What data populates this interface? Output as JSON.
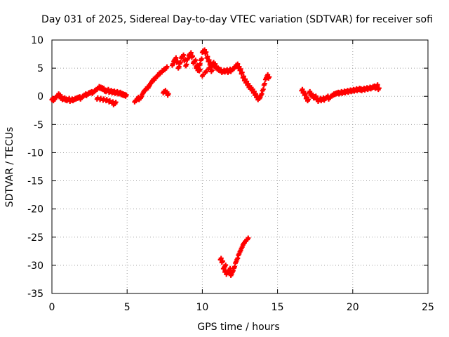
{
  "chart_data": {
    "type": "scatter",
    "title": "Day 031 of 2025, Sidereal Day-to-day VTEC variation (SDTVAR) for receiver sofi",
    "xlabel": "GPS time / hours",
    "ylabel": "SDTVAR / TECUs",
    "xlim": [
      0,
      25
    ],
    "ylim": [
      -35,
      10
    ],
    "xticks": [
      0,
      5,
      10,
      15,
      20,
      25
    ],
    "yticks": [
      -35,
      -30,
      -25,
      -20,
      -15,
      -10,
      -5,
      0,
      5,
      10
    ],
    "grid": true,
    "marker": "+",
    "color": "#ff0000",
    "series": [
      {
        "name": "SDTVAR",
        "points": [
          [
            0.0,
            -0.6
          ],
          [
            0.1,
            -0.8
          ],
          [
            0.2,
            -0.4
          ],
          [
            0.3,
            -0.2
          ],
          [
            0.4,
            0.2
          ],
          [
            0.5,
            0.0
          ],
          [
            0.6,
            -0.4
          ],
          [
            0.7,
            -0.6
          ],
          [
            0.8,
            -0.5
          ],
          [
            0.9,
            -0.7
          ],
          [
            1.0,
            -0.8
          ],
          [
            1.1,
            -0.6
          ],
          [
            1.2,
            -0.9
          ],
          [
            1.3,
            -0.7
          ],
          [
            1.4,
            -0.8
          ],
          [
            1.5,
            -0.6
          ],
          [
            1.6,
            -0.5
          ],
          [
            1.7,
            -0.4
          ],
          [
            1.8,
            -0.3
          ],
          [
            1.9,
            -0.5
          ],
          [
            2.0,
            -0.2
          ],
          [
            2.1,
            0.0
          ],
          [
            2.2,
            0.2
          ],
          [
            2.3,
            0.1
          ],
          [
            2.4,
            0.4
          ],
          [
            2.5,
            0.5
          ],
          [
            2.6,
            0.6
          ],
          [
            2.7,
            0.5
          ],
          [
            2.8,
            0.8
          ],
          [
            2.9,
            1.0
          ],
          [
            3.0,
            1.2
          ],
          [
            3.1,
            1.5
          ],
          [
            3.2,
            1.4
          ],
          [
            3.3,
            1.3
          ],
          [
            3.4,
            1.2
          ],
          [
            3.5,
            0.9
          ],
          [
            3.6,
            0.8
          ],
          [
            3.7,
            1.0
          ],
          [
            3.8,
            0.7
          ],
          [
            3.9,
            0.8
          ],
          [
            4.0,
            0.6
          ],
          [
            4.1,
            0.7
          ],
          [
            4.2,
            0.5
          ],
          [
            4.3,
            0.6
          ],
          [
            4.4,
            0.4
          ],
          [
            4.5,
            0.5
          ],
          [
            4.6,
            0.3
          ],
          [
            4.7,
            0.2
          ],
          [
            4.8,
            0.1
          ],
          [
            4.9,
            0.0
          ],
          [
            3.0,
            -0.5
          ],
          [
            3.2,
            -0.6
          ],
          [
            3.4,
            -0.7
          ],
          [
            3.6,
            -0.8
          ],
          [
            3.8,
            -1.0
          ],
          [
            4.0,
            -1.2
          ],
          [
            4.1,
            -1.5
          ],
          [
            4.2,
            -1.3
          ],
          [
            5.5,
            -1.0
          ],
          [
            5.6,
            -0.8
          ],
          [
            5.7,
            -0.4
          ],
          [
            5.8,
            -0.6
          ],
          [
            5.9,
            -0.3
          ],
          [
            6.0,
            0.3
          ],
          [
            6.1,
            0.8
          ],
          [
            6.2,
            1.0
          ],
          [
            6.3,
            1.4
          ],
          [
            6.4,
            1.5
          ],
          [
            6.5,
            2.0
          ],
          [
            6.6,
            2.4
          ],
          [
            6.7,
            2.8
          ],
          [
            6.8,
            2.9
          ],
          [
            6.9,
            3.3
          ],
          [
            7.0,
            3.5
          ],
          [
            7.1,
            3.9
          ],
          [
            7.2,
            4.0
          ],
          [
            7.3,
            4.3
          ],
          [
            7.4,
            4.6
          ],
          [
            7.5,
            4.7
          ],
          [
            7.6,
            5.0
          ],
          [
            7.4,
            0.6
          ],
          [
            7.5,
            0.8
          ],
          [
            7.6,
            0.5
          ],
          [
            7.7,
            0.2
          ],
          [
            8.0,
            5.5
          ],
          [
            8.1,
            6.2
          ],
          [
            8.2,
            6.6
          ],
          [
            8.3,
            6.0
          ],
          [
            8.4,
            5.0
          ],
          [
            8.5,
            5.8
          ],
          [
            8.6,
            6.8
          ],
          [
            8.7,
            7.1
          ],
          [
            8.8,
            6.3
          ],
          [
            8.9,
            5.4
          ],
          [
            9.0,
            6.5
          ],
          [
            9.1,
            7.2
          ],
          [
            9.2,
            7.5
          ],
          [
            9.3,
            6.9
          ],
          [
            9.4,
            5.9
          ],
          [
            9.5,
            6.2
          ],
          [
            9.6,
            5.3
          ],
          [
            9.7,
            4.6
          ],
          [
            9.8,
            5.5
          ],
          [
            9.9,
            6.4
          ],
          [
            10.0,
            7.8
          ],
          [
            10.1,
            8.0
          ],
          [
            10.2,
            7.6
          ],
          [
            10.3,
            6.8
          ],
          [
            10.4,
            6.2
          ],
          [
            10.5,
            5.6
          ],
          [
            10.6,
            5.2
          ],
          [
            10.7,
            5.8
          ],
          [
            10.8,
            5.5
          ],
          [
            10.9,
            5.0
          ],
          [
            11.0,
            4.8
          ],
          [
            11.1,
            4.6
          ],
          [
            11.2,
            4.5
          ],
          [
            11.3,
            4.2
          ],
          [
            11.4,
            4.4
          ],
          [
            11.5,
            4.3
          ],
          [
            11.6,
            4.5
          ],
          [
            11.7,
            4.2
          ],
          [
            11.8,
            4.6
          ],
          [
            11.9,
            4.4
          ],
          [
            12.0,
            4.7
          ],
          [
            12.1,
            4.9
          ],
          [
            12.2,
            5.3
          ],
          [
            12.3,
            5.5
          ],
          [
            12.4,
            5.0
          ],
          [
            12.5,
            4.6
          ],
          [
            12.6,
            4.0
          ],
          [
            12.7,
            3.3
          ],
          [
            12.8,
            2.8
          ],
          [
            12.9,
            2.4
          ],
          [
            13.0,
            2.0
          ],
          [
            13.1,
            1.6
          ],
          [
            13.2,
            1.3
          ],
          [
            13.3,
            1.0
          ],
          [
            13.4,
            0.6
          ],
          [
            13.5,
            0.2
          ],
          [
            13.6,
            -0.2
          ],
          [
            13.7,
            -0.6
          ],
          [
            13.8,
            -0.4
          ],
          [
            13.9,
            0.2
          ],
          [
            14.0,
            1.0
          ],
          [
            14.1,
            2.0
          ],
          [
            14.2,
            3.0
          ],
          [
            14.3,
            3.6
          ],
          [
            14.4,
            3.2
          ],
          [
            9.6,
            5.0
          ],
          [
            9.8,
            4.5
          ],
          [
            10.0,
            3.6
          ],
          [
            10.2,
            4.2
          ],
          [
            10.4,
            4.8
          ],
          [
            10.6,
            4.4
          ],
          [
            16.6,
            1.0
          ],
          [
            16.7,
            0.6
          ],
          [
            16.8,
            0.2
          ],
          [
            16.9,
            -0.4
          ],
          [
            17.0,
            -0.8
          ],
          [
            17.1,
            0.6
          ],
          [
            17.2,
            0.2
          ],
          [
            17.3,
            0.0
          ],
          [
            17.4,
            -0.3
          ],
          [
            17.5,
            -0.2
          ],
          [
            17.6,
            -0.6
          ],
          [
            17.7,
            -0.9
          ],
          [
            17.8,
            -0.6
          ],
          [
            17.9,
            -0.8
          ],
          [
            18.0,
            -0.5
          ],
          [
            18.1,
            -0.7
          ],
          [
            18.2,
            -0.4
          ],
          [
            18.3,
            -0.2
          ],
          [
            18.4,
            -0.5
          ],
          [
            18.5,
            -0.2
          ],
          [
            18.6,
            0.0
          ],
          [
            18.7,
            0.2
          ],
          [
            18.8,
            0.3
          ],
          [
            18.9,
            0.4
          ],
          [
            19.0,
            0.5
          ],
          [
            19.1,
            0.4
          ],
          [
            19.2,
            0.6
          ],
          [
            19.3,
            0.5
          ],
          [
            19.4,
            0.7
          ],
          [
            19.5,
            0.6
          ],
          [
            19.6,
            0.8
          ],
          [
            19.7,
            0.7
          ],
          [
            19.8,
            0.9
          ],
          [
            19.9,
            0.8
          ],
          [
            20.0,
            1.0
          ],
          [
            20.1,
            0.9
          ],
          [
            20.2,
            1.1
          ],
          [
            20.3,
            1.0
          ],
          [
            20.4,
            1.2
          ],
          [
            20.5,
            1.1
          ],
          [
            20.6,
            1.0
          ],
          [
            20.7,
            1.2
          ],
          [
            20.8,
            1.1
          ],
          [
            20.9,
            1.3
          ],
          [
            21.0,
            1.2
          ],
          [
            21.1,
            1.4
          ],
          [
            21.2,
            1.3
          ],
          [
            21.3,
            1.5
          ],
          [
            21.4,
            1.6
          ],
          [
            21.5,
            1.4
          ],
          [
            21.6,
            1.8
          ],
          [
            21.7,
            1.2
          ],
          [
            11.2,
            -29.0
          ],
          [
            11.3,
            -29.5
          ],
          [
            11.4,
            -30.6
          ],
          [
            11.5,
            -31.2
          ],
          [
            11.6,
            -31.6
          ],
          [
            11.7,
            -31.3
          ],
          [
            11.8,
            -30.8
          ],
          [
            11.9,
            -31.5
          ],
          [
            12.0,
            -31.2
          ],
          [
            12.1,
            -30.5
          ],
          [
            12.2,
            -29.6
          ],
          [
            12.3,
            -29.0
          ],
          [
            12.4,
            -28.2
          ],
          [
            12.5,
            -27.6
          ],
          [
            12.6,
            -27.0
          ],
          [
            12.7,
            -26.4
          ],
          [
            12.8,
            -26.0
          ],
          [
            12.9,
            -25.7
          ],
          [
            13.0,
            -25.4
          ],
          [
            11.5,
            -30.2
          ],
          [
            11.9,
            -31.8
          ]
        ]
      }
    ]
  }
}
